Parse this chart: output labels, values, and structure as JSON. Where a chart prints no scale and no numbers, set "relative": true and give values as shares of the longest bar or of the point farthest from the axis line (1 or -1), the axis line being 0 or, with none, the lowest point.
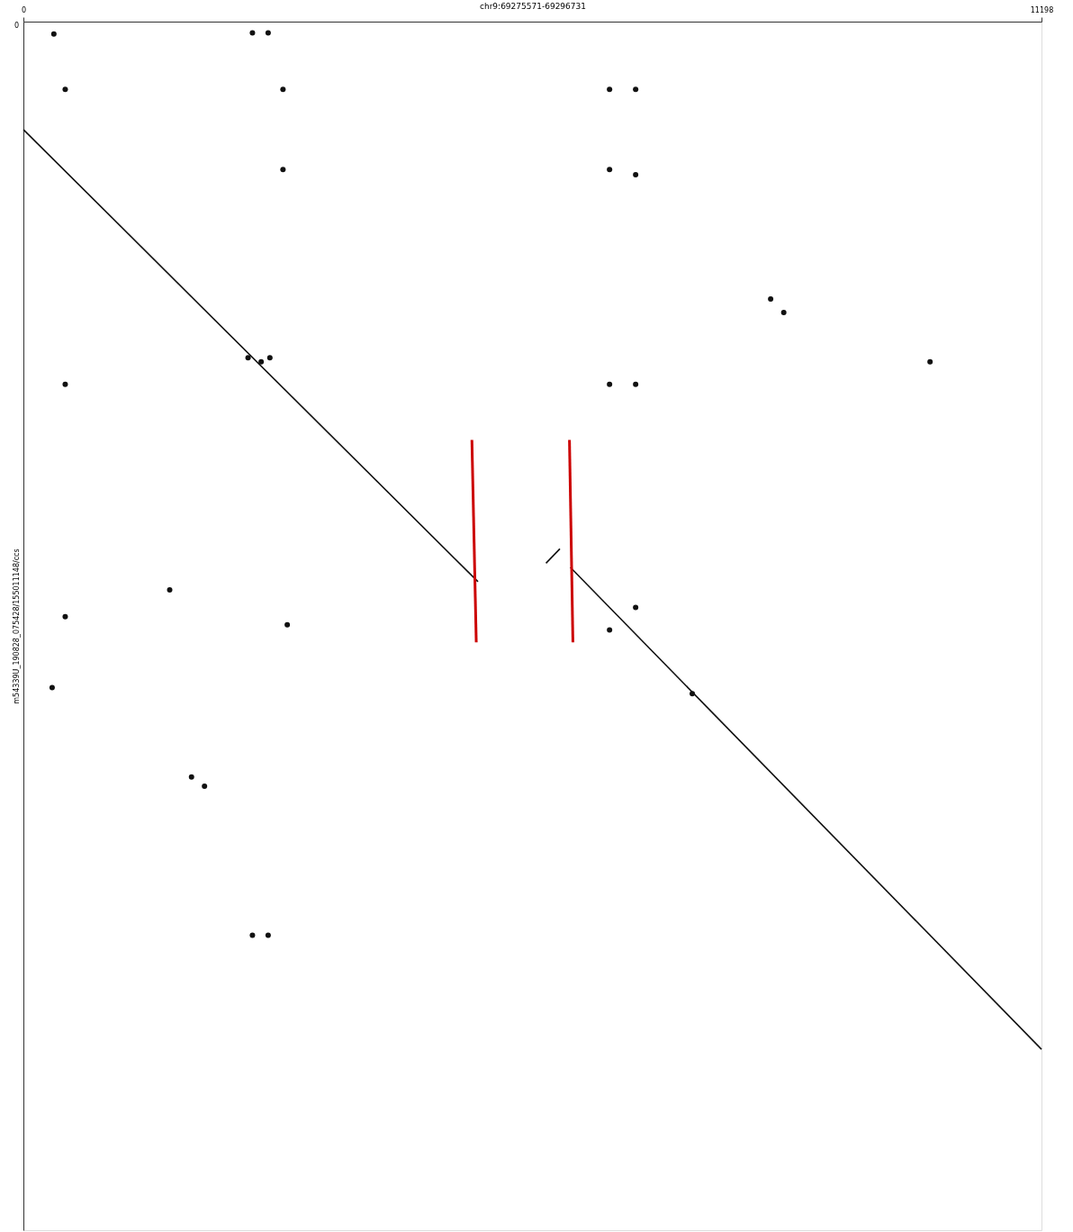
{
  "chart_data": {
    "type": "line",
    "relative": true,
    "xlabel": "chr9:69275571-69296731",
    "ylabel": "m54339U_190828_075428/155011148/ccs",
    "xlim": [
      0,
      11198
    ],
    "xticks": [
      0,
      {
        "value": 11198,
        "label": "11198"
      }
    ],
    "annotations": [
      "0"
    ],
    "series": [
      {
        "type": "line",
        "color": "#111111",
        "x": [
          0,
          5000
        ],
        "values": [
          -0.105,
          -0.545
        ]
      },
      {
        "type": "line",
        "color": "#111111",
        "x": [
          5748,
          5901
        ],
        "values": [
          -0.527,
          -0.513
        ]
      },
      {
        "type": "line",
        "color": "#111111",
        "x": [
          6016,
          11198
        ],
        "values": [
          -0.531,
          -1
        ]
      },
      {
        "type": "line",
        "color": "#cc0000",
        "x": [
          4933,
          4981
        ],
        "values": [
          -0.407,
          -0.604
        ]
      },
      {
        "type": "line",
        "color": "#cc0000",
        "x": [
          6006,
          6044
        ],
        "values": [
          -0.407,
          -0.604
        ]
      },
      {
        "type": "scatter",
        "color": "#111111",
        "marker": "circle",
        "x": [
          335,
          2519,
          2692,
          460,
          2855,
          6447,
          6734,
          2855,
          6447,
          6734,
          1609,
          316,
          1849,
          1992,
          8219,
          8363,
          9972,
          2471,
          2615,
          2711,
          460,
          6447,
          6734,
          460,
          2902,
          6447,
          6734,
          2519,
          2692,
          7357
        ],
        "values": [
          -0.012,
          -0.011,
          -0.011,
          -0.066,
          -0.066,
          -0.066,
          -0.066,
          -0.144,
          -0.144,
          -0.149,
          -0.553,
          -0.648,
          -0.735,
          -0.744,
          -0.27,
          -0.283,
          -0.331,
          -0.327,
          -0.331,
          -0.327,
          -0.353,
          -0.353,
          -0.353,
          -0.579,
          -0.587,
          -0.592,
          -0.57,
          -0.889,
          -0.889,
          -0.654
        ]
      }
    ]
  }
}
